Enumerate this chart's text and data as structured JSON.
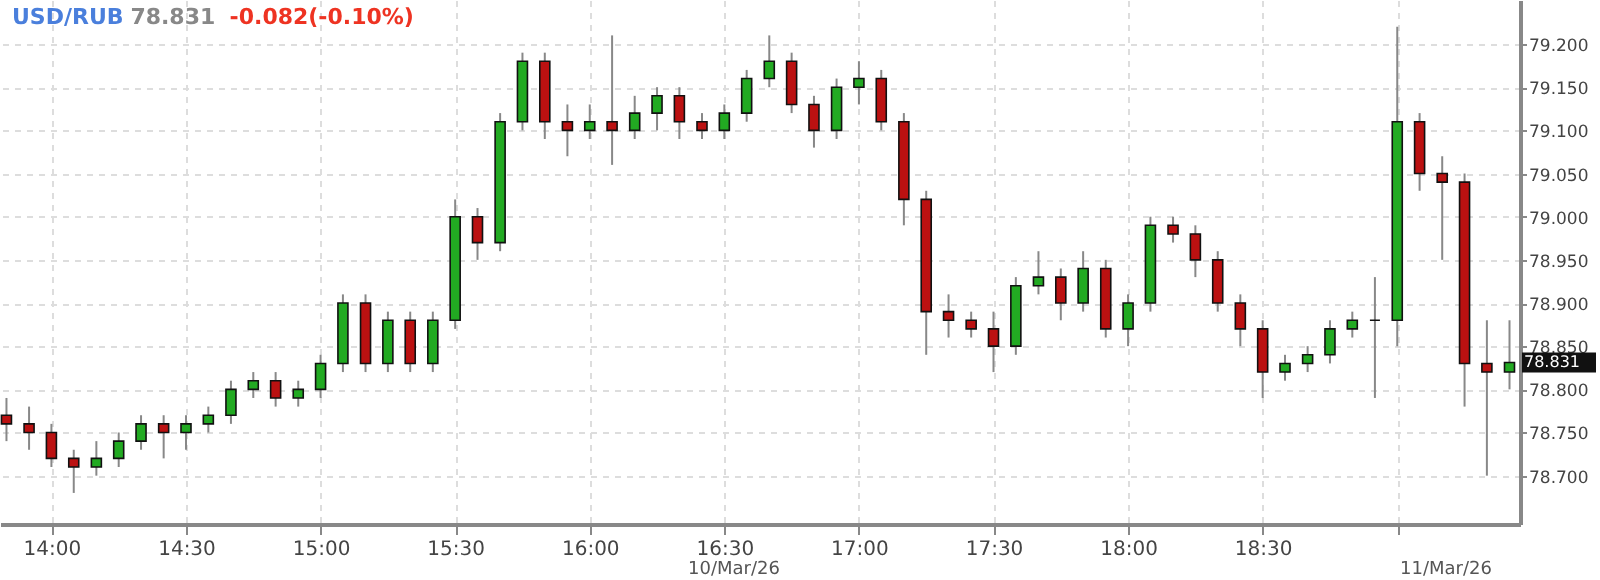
{
  "chart_data": {
    "type": "candlestick",
    "title": "USD/RUB",
    "annotations": [
      "78.831",
      "-0.082(-0.10%)",
      "10/Mar/26",
      "11/Mar/26",
      "78.831"
    ],
    "x": [
      13.833,
      13.917,
      14,
      14.083,
      14.167,
      14.25,
      14.333,
      14.417,
      14.5,
      14.583,
      14.667,
      14.75,
      14.833,
      14.917,
      15,
      15.083,
      15.167,
      15.25,
      15.333,
      15.417,
      15.5,
      15.583,
      15.667,
      15.75,
      15.833,
      15.917,
      16,
      16.083,
      16.167,
      16.25,
      16.333,
      16.417,
      16.5,
      16.583,
      16.667,
      16.75,
      16.833,
      16.917,
      17,
      17.083,
      17.167,
      17.25,
      17.333,
      17.417,
      17.5,
      17.583,
      17.667,
      17.75,
      17.833,
      17.917,
      18,
      18.083,
      18.167,
      18.25,
      18.333,
      18.417,
      18.5,
      18.583,
      18.667,
      18.75,
      18.833,
      18.917,
      19,
      19.083,
      19.167,
      19.25,
      19.333,
      19.417
    ],
    "ohlc": [
      [
        78.77,
        78.79,
        78.74,
        78.76
      ],
      [
        78.76,
        78.78,
        78.73,
        78.75
      ],
      [
        78.75,
        78.76,
        78.71,
        78.72
      ],
      [
        78.72,
        78.73,
        78.68,
        78.71
      ],
      [
        78.71,
        78.74,
        78.7,
        78.72
      ],
      [
        78.72,
        78.75,
        78.71,
        78.74
      ],
      [
        78.74,
        78.77,
        78.73,
        78.76
      ],
      [
        78.76,
        78.77,
        78.72,
        78.75
      ],
      [
        78.75,
        78.77,
        78.73,
        78.76
      ],
      [
        78.76,
        78.78,
        78.75,
        78.77
      ],
      [
        78.77,
        78.81,
        78.76,
        78.8
      ],
      [
        78.8,
        78.82,
        78.79,
        78.81
      ],
      [
        78.81,
        78.82,
        78.78,
        78.79
      ],
      [
        78.79,
        78.81,
        78.78,
        78.8
      ],
      [
        78.8,
        78.84,
        78.79,
        78.83
      ],
      [
        78.83,
        78.91,
        78.82,
        78.9
      ],
      [
        78.9,
        78.91,
        78.82,
        78.83
      ],
      [
        78.83,
        78.89,
        78.82,
        78.88
      ],
      [
        78.88,
        78.89,
        78.82,
        78.83
      ],
      [
        78.83,
        78.89,
        78.82,
        78.88
      ],
      [
        78.88,
        79.02,
        78.87,
        79.0
      ],
      [
        79.0,
        79.01,
        78.95,
        78.97
      ],
      [
        78.97,
        79.12,
        78.96,
        79.11
      ],
      [
        79.11,
        79.19,
        79.1,
        79.18
      ],
      [
        79.18,
        79.19,
        79.09,
        79.11
      ],
      [
        79.11,
        79.13,
        79.07,
        79.1
      ],
      [
        79.1,
        79.13,
        79.09,
        79.11
      ],
      [
        79.11,
        79.21,
        79.06,
        79.1
      ],
      [
        79.1,
        79.14,
        79.09,
        79.12
      ],
      [
        79.12,
        79.15,
        79.1,
        79.14
      ],
      [
        79.14,
        79.15,
        79.09,
        79.11
      ],
      [
        79.11,
        79.12,
        79.09,
        79.1
      ],
      [
        79.1,
        79.13,
        79.09,
        79.12
      ],
      [
        79.12,
        79.17,
        79.11,
        79.16
      ],
      [
        79.16,
        79.21,
        79.15,
        79.18
      ],
      [
        79.18,
        79.19,
        79.12,
        79.13
      ],
      [
        79.13,
        79.14,
        79.08,
        79.1
      ],
      [
        79.1,
        79.16,
        79.09,
        79.15
      ],
      [
        79.15,
        79.18,
        79.13,
        79.16
      ],
      [
        79.16,
        79.17,
        79.1,
        79.11
      ],
      [
        79.11,
        79.12,
        78.99,
        79.02
      ],
      [
        79.02,
        79.03,
        78.84,
        78.89
      ],
      [
        78.89,
        78.91,
        78.86,
        78.88
      ],
      [
        78.88,
        78.89,
        78.86,
        78.87
      ],
      [
        78.87,
        78.89,
        78.82,
        78.85
      ],
      [
        78.85,
        78.93,
        78.84,
        78.92
      ],
      [
        78.92,
        78.96,
        78.91,
        78.93
      ],
      [
        78.93,
        78.94,
        78.88,
        78.9
      ],
      [
        78.9,
        78.96,
        78.89,
        78.94
      ],
      [
        78.94,
        78.95,
        78.86,
        78.87
      ],
      [
        78.87,
        78.91,
        78.85,
        78.9
      ],
      [
        78.9,
        79.0,
        78.89,
        78.99
      ],
      [
        78.99,
        79.0,
        78.97,
        78.98
      ],
      [
        78.98,
        78.99,
        78.93,
        78.95
      ],
      [
        78.95,
        78.96,
        78.89,
        78.9
      ],
      [
        78.9,
        78.91,
        78.85,
        78.87
      ],
      [
        78.87,
        78.88,
        78.79,
        78.82
      ],
      [
        78.82,
        78.84,
        78.81,
        78.83
      ],
      [
        78.83,
        78.85,
        78.82,
        78.84
      ],
      [
        78.84,
        78.88,
        78.83,
        78.87
      ],
      [
        78.87,
        78.89,
        78.86,
        78.88
      ],
      [
        78.88,
        78.93,
        78.79,
        78.88
      ],
      [
        78.88,
        79.22,
        78.85,
        79.11
      ],
      [
        79.11,
        79.12,
        79.03,
        79.05
      ],
      [
        79.05,
        79.07,
        78.95,
        79.04
      ],
      [
        79.04,
        79.05,
        78.78,
        78.83
      ],
      [
        78.83,
        78.88,
        78.7,
        78.82
      ],
      [
        78.82,
        78.88,
        78.8,
        78.831
      ]
    ],
    "xlim": [
      13.809,
      19.456
    ],
    "ylim": [
      78.644,
      79.251
    ],
    "xticks": [
      {
        "value": 14,
        "label": "14:00"
      },
      {
        "value": 14.5,
        "label": "14:30"
      },
      {
        "value": 15,
        "label": "15:00"
      },
      {
        "value": 15.5,
        "label": "15:30"
      },
      {
        "value": 16,
        "label": "16:00"
      },
      {
        "value": 16.5,
        "label": "16:30"
      },
      {
        "value": 17,
        "label": "17:00"
      },
      {
        "value": 17.5,
        "label": "17:30"
      },
      {
        "value": 18,
        "label": "18:00"
      },
      {
        "value": 18.5,
        "label": "18:30"
      },
      {
        "value": 19,
        "label": null
      }
    ],
    "yticks": [
      {
        "value": 78.7,
        "label": "78.700"
      },
      {
        "value": 78.75,
        "label": "78.750"
      },
      {
        "value": 78.8,
        "label": "78.800"
      },
      {
        "value": 78.85,
        "label": "78.850"
      },
      {
        "value": 78.9,
        "label": "78.900"
      },
      {
        "value": 78.95,
        "label": "78.950"
      },
      {
        "value": 79.0,
        "label": "79.000"
      },
      {
        "value": 79.05,
        "label": "79.050"
      },
      {
        "value": 79.1,
        "label": "79.100"
      },
      {
        "value": 79.15,
        "label": "79.150"
      },
      {
        "value": 79.2,
        "label": "79.200"
      }
    ],
    "grid": true
  }
}
